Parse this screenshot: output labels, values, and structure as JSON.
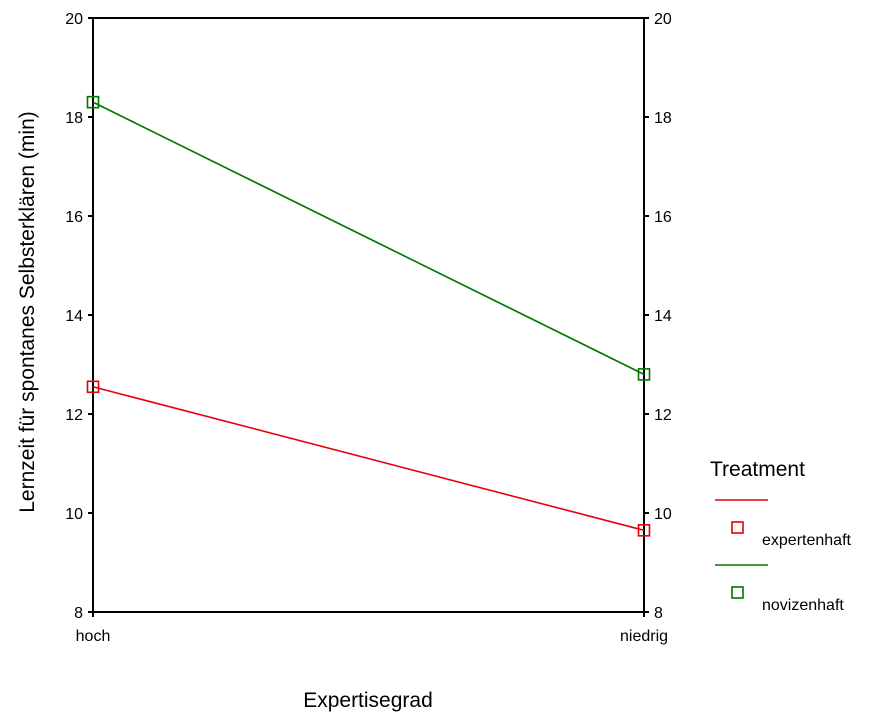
{
  "chart_data": {
    "type": "line",
    "categories": [
      "hoch",
      "niedrig"
    ],
    "series": [
      {
        "name": "expertenhaft",
        "values": [
          12.55,
          9.65
        ],
        "color": "#e8000b"
      },
      {
        "name": "novizenhaft",
        "values": [
          18.3,
          12.8
        ],
        "color": "#007800"
      }
    ],
    "xlabel": "Expertisegrad",
    "ylabel": "Lernzeit für spontanes Selbsterklären (min)",
    "ylim": [
      8,
      20
    ],
    "yticks": [
      "8",
      "10",
      "12",
      "14",
      "16",
      "18",
      "20"
    ],
    "legend": {
      "title": "Treatment",
      "position": "right"
    },
    "grid": false,
    "marker": "open-square"
  }
}
